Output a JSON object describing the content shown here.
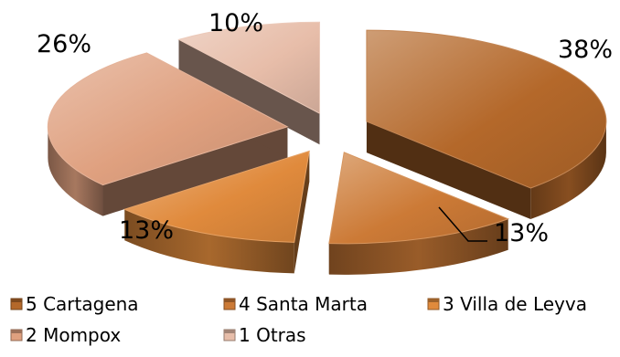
{
  "chart_data": {
    "type": "pie",
    "style": "exploded 3D pie",
    "title": "",
    "categories": [
      "5 Cartagena",
      "4 Santa Marta",
      "3 Villa de Leyva",
      "2 Mompox",
      "1 Otras"
    ],
    "values": [
      38,
      13,
      13,
      26,
      10
    ],
    "value_labels": [
      "38%",
      "13%",
      "13%",
      "26%",
      "10%"
    ],
    "unit": "%",
    "colors": [
      "#b4682a",
      "#cc7a36",
      "#e08a3c",
      "#dfa07f",
      "#e7bda9"
    ],
    "legend": {
      "position": "bottom",
      "entries": [
        "5 Cartagena",
        "4 Santa Marta",
        "3 Villa de Leyva",
        "2 Mompox",
        "1 Otras"
      ]
    }
  }
}
